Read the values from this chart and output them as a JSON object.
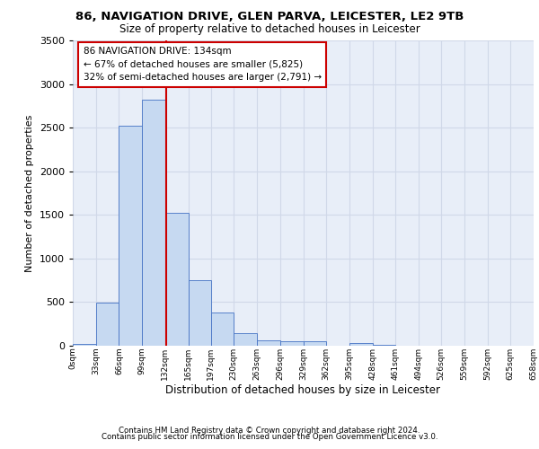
{
  "title1": "86, NAVIGATION DRIVE, GLEN PARVA, LEICESTER, LE2 9TB",
  "title2": "Size of property relative to detached houses in Leicester",
  "xlabel": "Distribution of detached houses by size in Leicester",
  "ylabel": "Number of detached properties",
  "bin_labels": [
    "0sqm",
    "33sqm",
    "66sqm",
    "99sqm",
    "132sqm",
    "165sqm",
    "197sqm",
    "230sqm",
    "263sqm",
    "296sqm",
    "329sqm",
    "362sqm",
    "395sqm",
    "428sqm",
    "461sqm",
    "494sqm",
    "526sqm",
    "559sqm",
    "592sqm",
    "625sqm",
    "658sqm"
  ],
  "bin_edges": [
    0,
    33,
    66,
    99,
    132,
    165,
    197,
    230,
    263,
    296,
    329,
    362,
    395,
    428,
    461,
    494,
    526,
    559,
    592,
    625,
    658
  ],
  "bar_heights": [
    20,
    490,
    2520,
    2820,
    1520,
    750,
    385,
    140,
    65,
    55,
    55,
    0,
    30,
    10,
    0,
    0,
    0,
    0,
    0,
    0
  ],
  "bar_color": "#c6d9f1",
  "bar_edge_color": "#4472c4",
  "vline_x": 134,
  "vline_color": "#cc0000",
  "annotation_text": "86 NAVIGATION DRIVE: 134sqm\n← 67% of detached houses are smaller (5,825)\n32% of semi-detached houses are larger (2,791) →",
  "annotation_box_color": "#ffffff",
  "annotation_box_edge": "#cc0000",
  "ylim_max": 3500,
  "yticks": [
    0,
    500,
    1000,
    1500,
    2000,
    2500,
    3000,
    3500
  ],
  "grid_color": "#d0d8e8",
  "bg_color": "#e8eef8",
  "footer1": "Contains HM Land Registry data © Crown copyright and database right 2024.",
  "footer2": "Contains public sector information licensed under the Open Government Licence v3.0."
}
